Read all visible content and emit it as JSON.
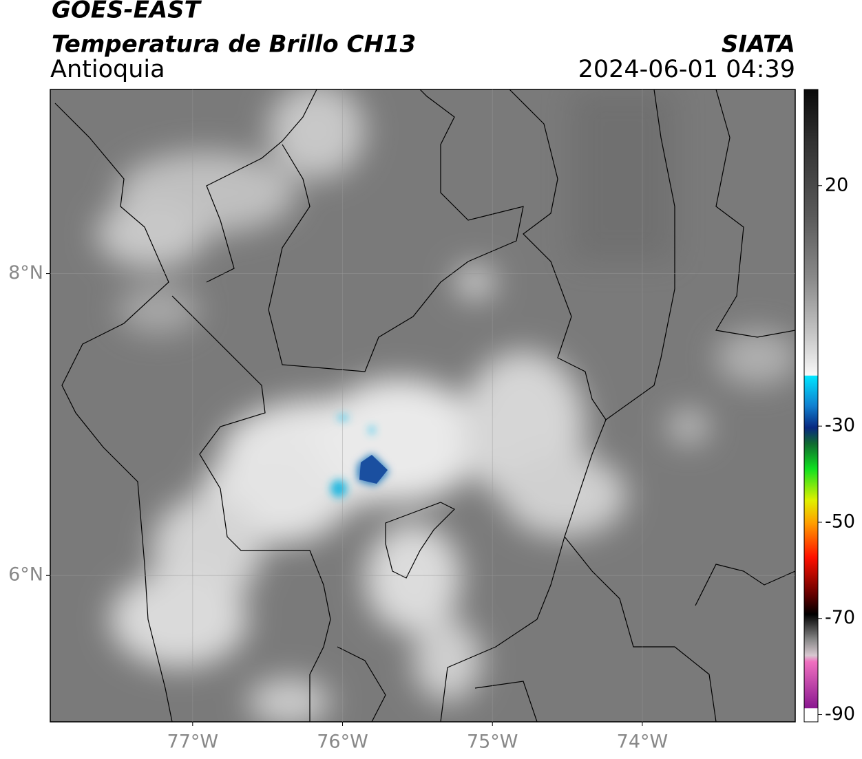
{
  "header": {
    "title": "GOES-EAST",
    "subtitle": "Temperatura de Brillo CH13",
    "region": "Antioquia",
    "source": "SIATA",
    "datetime": "2024-06-01 04:39"
  },
  "map": {
    "xlim": [
      -77.95,
      -72.98
    ],
    "ylim": [
      5.03,
      9.22
    ],
    "xticks": [
      {
        "value": -77,
        "label": "77°W"
      },
      {
        "value": -76,
        "label": "76°W"
      },
      {
        "value": -75,
        "label": "75°W"
      },
      {
        "value": -74,
        "label": "74°W"
      }
    ],
    "yticks": [
      {
        "value": 6,
        "label": "6°N"
      },
      {
        "value": 8,
        "label": "8°N"
      }
    ],
    "grid": true
  },
  "colorbar": {
    "lim": [
      -91.5,
      40
    ],
    "ticks": [
      20,
      -30,
      -50,
      -70,
      -90
    ]
  }
}
